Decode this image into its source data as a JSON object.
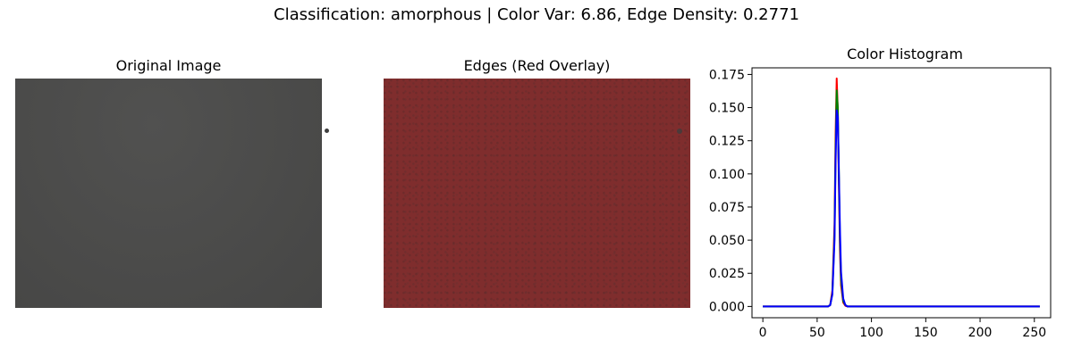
{
  "suptitle": "Classification: amorphous | Color Var: 6.86, Edge Density: 0.2771",
  "panels": {
    "original": {
      "title": "Original Image"
    },
    "edges": {
      "title": "Edges (Red Overlay)"
    }
  },
  "chart_data": {
    "type": "line",
    "title": "Color Histogram",
    "xlabel": "",
    "ylabel": "",
    "xlim": [
      -10,
      265
    ],
    "ylim": [
      -0.0085,
      0.18
    ],
    "xticks": [
      0,
      50,
      100,
      150,
      200,
      250
    ],
    "xtick_labels": [
      "0",
      "50",
      "100",
      "150",
      "200",
      "250"
    ],
    "yticks": [
      0.0,
      0.025,
      0.05,
      0.075,
      0.1,
      0.125,
      0.15,
      0.175
    ],
    "ytick_labels": [
      "0.000",
      "0.025",
      "0.050",
      "0.075",
      "0.100",
      "0.125",
      "0.150",
      "0.175"
    ],
    "grid": false,
    "series": [
      {
        "color": "#ff0000",
        "x": [
          0,
          60,
          62,
          64,
          66,
          67,
          68,
          69,
          70,
          71,
          72,
          74,
          76,
          78,
          80,
          255
        ],
        "y": [
          0,
          0,
          0.001,
          0.012,
          0.062,
          0.13,
          0.172,
          0.148,
          0.092,
          0.042,
          0.016,
          0.003,
          0.0005,
          0,
          0,
          0
        ]
      },
      {
        "color": "#008000",
        "x": [
          0,
          60,
          62,
          64,
          66,
          67,
          68,
          69,
          70,
          71,
          72,
          74,
          76,
          78,
          80,
          255
        ],
        "y": [
          0,
          0,
          0.001,
          0.01,
          0.055,
          0.118,
          0.163,
          0.15,
          0.1,
          0.05,
          0.02,
          0.004,
          0.001,
          0,
          0,
          0
        ]
      },
      {
        "color": "#0000ff",
        "x": [
          0,
          60,
          62,
          64,
          66,
          67,
          68,
          69,
          70,
          71,
          72,
          74,
          76,
          78,
          80,
          255
        ],
        "y": [
          0,
          0,
          0.001,
          0.009,
          0.05,
          0.11,
          0.148,
          0.143,
          0.102,
          0.058,
          0.026,
          0.006,
          0.001,
          0,
          0,
          0
        ]
      }
    ]
  }
}
